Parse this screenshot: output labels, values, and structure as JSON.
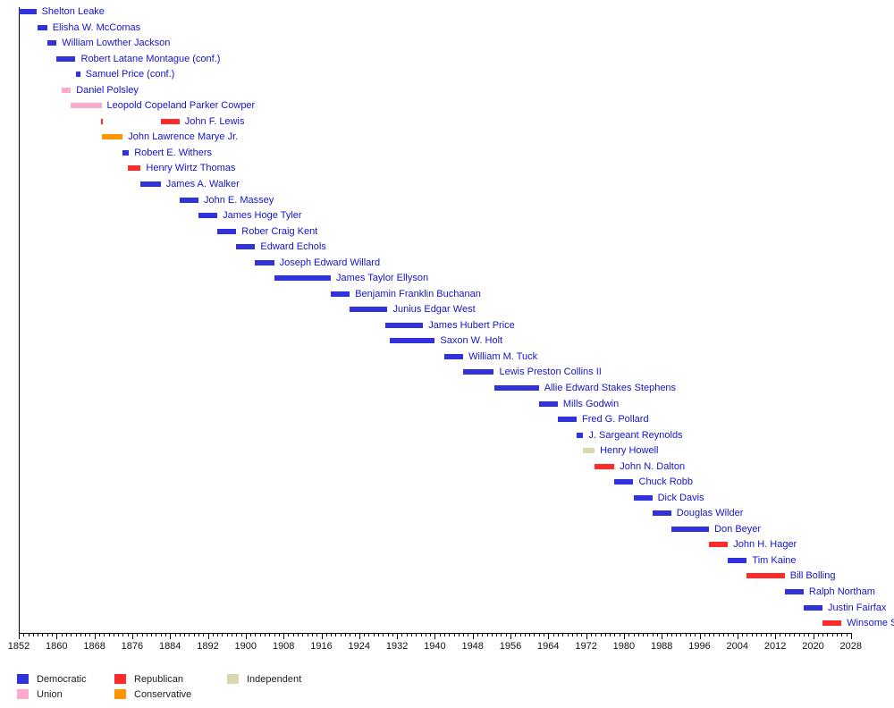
{
  "chart_data": {
    "type": "timeline",
    "description": "Gantt-style timeline of officeholders with bars colored by party",
    "axis": {
      "x_min": 1852,
      "x_max": 2028,
      "major_tick_step_years": 8,
      "minor_tick_step_years": 1,
      "tick_labels": [
        "1852",
        "1860",
        "1868",
        "1876",
        "1884",
        "1892",
        "1900",
        "1908",
        "1916",
        "1924",
        "1932",
        "1940",
        "1948",
        "1956",
        "1964",
        "1972",
        "1980",
        "1988",
        "1996",
        "2004",
        "2012",
        "2020",
        "2028"
      ],
      "grid": false
    },
    "parties": {
      "Democratic": "#3232dd",
      "Republican": "#ff2b2b",
      "Independent": "#d8d7b0",
      "Union": "#ffaacc",
      "Conservative": "#ff9300"
    },
    "people": [
      {
        "name": "Shelton Leake",
        "party": "Democratic",
        "terms": [
          [
            1852,
            1855.7
          ]
        ]
      },
      {
        "name": "Elisha W. McComas",
        "party": "Democratic",
        "terms": [
          [
            1856,
            1858
          ]
        ]
      },
      {
        "name": "William Lowther Jackson",
        "party": "Democratic",
        "terms": [
          [
            1858,
            1860
          ]
        ]
      },
      {
        "name": "Robert Latane Montague (conf.)",
        "party": "Democratic",
        "terms": [
          [
            1860,
            1864
          ]
        ]
      },
      {
        "name": "Samuel Price (conf.)",
        "party": "Democratic",
        "terms": [
          [
            1864,
            1865
          ]
        ]
      },
      {
        "name": "Daniel Polsley",
        "party": "Union",
        "terms": [
          [
            1861,
            1863
          ]
        ]
      },
      {
        "name": "Leopold Copeland Parker Cowper",
        "party": "Union",
        "terms": [
          [
            1863,
            1869.5
          ]
        ]
      },
      {
        "name": "John F. Lewis",
        "party": "Republican",
        "terms": [
          [
            1869.3,
            1869.8
          ],
          [
            1882,
            1886
          ]
        ]
      },
      {
        "name": "John Lawrence Marye Jr.",
        "party": "Conservative",
        "terms": [
          [
            1869.5,
            1874
          ]
        ]
      },
      {
        "name": "Robert E. Withers",
        "party": "Democratic",
        "terms": [
          [
            1874,
            1875.3
          ]
        ]
      },
      {
        "name": "Henry Wirtz Thomas",
        "party": "Republican",
        "terms": [
          [
            1875,
            1877.8
          ]
        ]
      },
      {
        "name": "James A. Walker",
        "party": "Democratic",
        "terms": [
          [
            1877.8,
            1882
          ]
        ]
      },
      {
        "name": "John E. Massey",
        "party": "Democratic",
        "terms": [
          [
            1886,
            1890
          ]
        ]
      },
      {
        "name": "James Hoge Tyler",
        "party": "Democratic",
        "terms": [
          [
            1890,
            1894
          ]
        ]
      },
      {
        "name": "Rober Craig Kent",
        "party": "Democratic",
        "terms": [
          [
            1894,
            1898
          ]
        ]
      },
      {
        "name": "Edward Echols",
        "party": "Democratic",
        "terms": [
          [
            1898,
            1902
          ]
        ]
      },
      {
        "name": "Joseph Edward Willard",
        "party": "Democratic",
        "terms": [
          [
            1902,
            1906
          ]
        ]
      },
      {
        "name": "James Taylor Ellyson",
        "party": "Democratic",
        "terms": [
          [
            1906,
            1918
          ]
        ]
      },
      {
        "name": "Benjamin Franklin Buchanan",
        "party": "Democratic",
        "terms": [
          [
            1918,
            1922
          ]
        ]
      },
      {
        "name": "Junius Edgar West",
        "party": "Democratic",
        "terms": [
          [
            1922,
            1930
          ]
        ]
      },
      {
        "name": "James Hubert Price",
        "party": "Democratic",
        "terms": [
          [
            1929.5,
            1937.5
          ]
        ]
      },
      {
        "name": "Saxon W. Holt",
        "party": "Democratic",
        "terms": [
          [
            1930.5,
            1940
          ]
        ]
      },
      {
        "name": "William M. Tuck",
        "party": "Democratic",
        "terms": [
          [
            1942,
            1946
          ]
        ]
      },
      {
        "name": "Lewis Preston Collins II",
        "party": "Democratic",
        "terms": [
          [
            1946,
            1952.5
          ]
        ]
      },
      {
        "name": "Allie Edward Stakes Stephens",
        "party": "Democratic",
        "terms": [
          [
            1952.5,
            1962
          ]
        ]
      },
      {
        "name": "Mills Godwin",
        "party": "Democratic",
        "terms": [
          [
            1962,
            1966
          ]
        ]
      },
      {
        "name": "Fred G. Pollard",
        "party": "Democratic",
        "terms": [
          [
            1966,
            1970
          ]
        ]
      },
      {
        "name": "J. Sargeant Reynolds",
        "party": "Democratic",
        "terms": [
          [
            1970,
            1971.4
          ]
        ]
      },
      {
        "name": "Henry Howell",
        "party": "Independent",
        "terms": [
          [
            1971.4,
            1973.8
          ]
        ]
      },
      {
        "name": "John N. Dalton",
        "party": "Republican",
        "terms": [
          [
            1973.8,
            1978
          ]
        ]
      },
      {
        "name": "Chuck Robb",
        "party": "Democratic",
        "terms": [
          [
            1978,
            1982
          ]
        ]
      },
      {
        "name": "Dick Davis",
        "party": "Democratic",
        "terms": [
          [
            1982,
            1986
          ]
        ]
      },
      {
        "name": "Douglas Wilder",
        "party": "Democratic",
        "terms": [
          [
            1986,
            1990
          ]
        ]
      },
      {
        "name": "Don Beyer",
        "party": "Democratic",
        "terms": [
          [
            1990,
            1998
          ]
        ]
      },
      {
        "name": "John H. Hager",
        "party": "Republican",
        "terms": [
          [
            1998,
            2002
          ]
        ]
      },
      {
        "name": "Tim Kaine",
        "party": "Democratic",
        "terms": [
          [
            2002,
            2006
          ]
        ]
      },
      {
        "name": "Bill Bolling",
        "party": "Republican",
        "terms": [
          [
            2006,
            2014
          ]
        ]
      },
      {
        "name": "Ralph Northam",
        "party": "Democratic",
        "terms": [
          [
            2014,
            2018
          ]
        ]
      },
      {
        "name": "Justin Fairfax",
        "party": "Democratic",
        "terms": [
          [
            2018,
            2022
          ]
        ]
      },
      {
        "name": "Winsome Sears",
        "party": "Republican",
        "terms": [
          [
            2022,
            2026
          ]
        ]
      }
    ],
    "legend": {
      "position": "bottom-left",
      "rows": [
        [
          "Democratic",
          "Republican",
          "Independent"
        ],
        [
          "Union",
          "Conservative"
        ]
      ]
    }
  }
}
